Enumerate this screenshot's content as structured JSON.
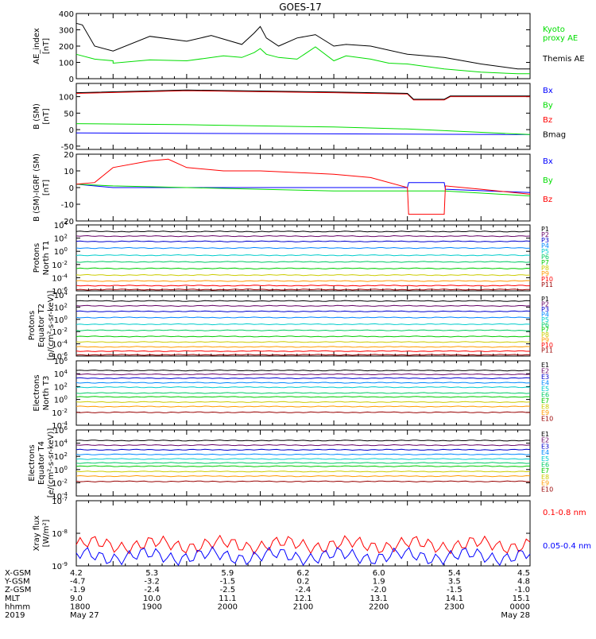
{
  "title": "GOES-17",
  "colors": {
    "black": "#000000",
    "red": "#ff0000",
    "green": "#00dd00",
    "blue": "#0000ff",
    "darkred": "#990000"
  },
  "chart_data": [
    {
      "type": "line",
      "panel": "AE index",
      "ylabel": [
        "AE_index",
        "[nT]"
      ],
      "ylim": [
        0,
        400
      ],
      "yticks": [
        "0",
        "100",
        "200",
        "300",
        "400"
      ],
      "series": [
        {
          "name": "Kyoto proxy AE",
          "legend_lines": [
            "Kyoto",
            "proxy AE"
          ],
          "color": "#00dd00",
          "x": [
            1730,
            1745,
            1760,
            1800,
            1830,
            1900,
            1930,
            1945,
            1955,
            2000,
            2005,
            2015,
            2030,
            2045,
            2100,
            2110,
            2130,
            2145,
            2200,
            2230,
            2300,
            2330,
            2340
          ],
          "y": [
            150,
            120,
            110,
            95,
            115,
            110,
            140,
            130,
            160,
            185,
            150,
            130,
            120,
            195,
            110,
            140,
            120,
            95,
            90,
            60,
            40,
            30,
            30
          ]
        },
        {
          "name": "Themis AE",
          "legend_lines": [
            "Themis AE"
          ],
          "color": "#000000",
          "x": [
            1730,
            1735,
            1745,
            1800,
            1830,
            1900,
            1920,
            1945,
            1955,
            2000,
            2005,
            2015,
            2030,
            2045,
            2100,
            2110,
            2130,
            2200,
            2230,
            2300,
            2330,
            2340
          ],
          "y": [
            340,
            330,
            200,
            170,
            260,
            230,
            265,
            210,
            280,
            320,
            250,
            200,
            250,
            270,
            200,
            210,
            200,
            150,
            130,
            90,
            60,
            60
          ]
        }
      ]
    },
    {
      "type": "line",
      "panel": "B (SM)",
      "ylabel": [
        "B (SM)",
        "[nT]"
      ],
      "ylim": [
        -60,
        140
      ],
      "yticks": [
        "-50",
        "0",
        "50",
        "100"
      ],
      "series": [
        {
          "name": "Bx",
          "color": "#0000ff",
          "x": [
            1730,
            2340
          ],
          "y": [
            -10,
            -15
          ]
        },
        {
          "name": "By",
          "color": "#00dd00",
          "x": [
            1730,
            1900,
            2100,
            2200,
            2340
          ],
          "y": [
            18,
            15,
            8,
            2,
            -15
          ]
        },
        {
          "name": "Bz",
          "color": "#ff0000",
          "x": [
            1730,
            1900,
            2100,
            2200,
            2205,
            2230,
            2235,
            2340
          ],
          "y": [
            110,
            118,
            112,
            108,
            90,
            90,
            100,
            100
          ]
        },
        {
          "name": "Bmag",
          "color": "#000000",
          "x": [
            1730,
            1900,
            2100,
            2200,
            2205,
            2230,
            2235,
            2340
          ],
          "y": [
            112,
            120,
            114,
            110,
            92,
            92,
            102,
            102
          ]
        }
      ]
    },
    {
      "type": "line",
      "panel": "B (SM)-IGRF (SM)",
      "ylabel": [
        "B (SM)-IGRF (SM)",
        "[nT]"
      ],
      "ylim": [
        -20,
        20
      ],
      "yticks": [
        "-20",
        "-10",
        "0",
        "10",
        "20"
      ],
      "series": [
        {
          "name": "Bx",
          "color": "#0000ff",
          "x": [
            1730,
            1800,
            1900,
            2100,
            2200,
            2201,
            2230,
            2231,
            2340
          ],
          "y": [
            2,
            0,
            0,
            0,
            0,
            3,
            3,
            -1,
            -3
          ]
        },
        {
          "name": "By",
          "color": "#00dd00",
          "x": [
            1730,
            1800,
            1900,
            2000,
            2100,
            2200,
            2230,
            2340
          ],
          "y": [
            2,
            1,
            0,
            -1,
            -2,
            -2,
            -2,
            -5
          ]
        },
        {
          "name": "Bz",
          "color": "#ff0000",
          "x": [
            1730,
            1745,
            1800,
            1830,
            1845,
            1900,
            1930,
            2000,
            2030,
            2100,
            2130,
            2200,
            2201,
            2230,
            2231,
            2300,
            2340
          ],
          "y": [
            2,
            3,
            12,
            16,
            17,
            12,
            10,
            10,
            9,
            8,
            6,
            0,
            -16,
            -16,
            1,
            -1,
            -4
          ]
        }
      ]
    },
    {
      "type": "line",
      "panel": "Protons North T1",
      "ylabel": [
        "Protons",
        "North T1"
      ],
      "log": true,
      "ylim_exp": [
        -6,
        4
      ],
      "yticks": [
        "10^4",
        "10^2",
        "10^0",
        "10^-2",
        "10^-4",
        "10^-6"
      ],
      "series": [
        {
          "name": "P1",
          "color": "#000000",
          "log10": 3.0
        },
        {
          "name": "P2",
          "color": "#660066",
          "log10": 2.3
        },
        {
          "name": "P3",
          "color": "#0000cc",
          "log10": 1.5
        },
        {
          "name": "P4",
          "color": "#0088ff",
          "log10": 0.5
        },
        {
          "name": "P5",
          "color": "#00cccc",
          "log10": -0.6
        },
        {
          "name": "P6",
          "color": "#00cc66",
          "log10": -1.6
        },
        {
          "name": "P7",
          "color": "#00cc00",
          "log10": -2.6
        },
        {
          "name": "P8",
          "color": "#cccc00",
          "log10": -3.6
        },
        {
          "name": "P9",
          "color": "#ff9900",
          "log10": -4.5
        },
        {
          "name": "P10",
          "color": "#ff0000",
          "log10": -5.2
        },
        {
          "name": "P11",
          "color": "#990000",
          "log10": -5.8
        }
      ]
    },
    {
      "type": "line",
      "panel": "Protons Equator T2",
      "ylabel": [
        "Protons",
        "Equator T2",
        "[p/(cm²-s-sr-keV)]"
      ],
      "log": true,
      "ylim_exp": [
        -6,
        4
      ],
      "yticks": [
        "10^4",
        "10^2",
        "10^0",
        "10^-2",
        "10^-4",
        "10^-6"
      ],
      "series": [
        {
          "name": "P1",
          "color": "#000000",
          "log10": 3.0
        },
        {
          "name": "P2",
          "color": "#660066",
          "log10": 2.2
        },
        {
          "name": "P3",
          "color": "#0000cc",
          "log10": 1.3
        },
        {
          "name": "P4",
          "color": "#0088ff",
          "log10": 0.3
        },
        {
          "name": "P5",
          "color": "#00cccc",
          "log10": -0.8
        },
        {
          "name": "P6",
          "color": "#00cc66",
          "log10": -1.8
        },
        {
          "name": "P7",
          "color": "#00cc00",
          "log10": -2.8
        },
        {
          "name": "P8",
          "color": "#cccc00",
          "log10": -3.7
        },
        {
          "name": "P9",
          "color": "#ff9900",
          "log10": -4.5
        },
        {
          "name": "P10",
          "color": "#ff0000",
          "log10": -5.2
        },
        {
          "name": "P11",
          "color": "#990000",
          "log10": -5.8
        }
      ]
    },
    {
      "type": "line",
      "panel": "Electrons North T3",
      "ylabel": [
        "Electrons",
        "North T3"
      ],
      "log": true,
      "ylim_exp": [
        -4,
        6
      ],
      "yticks": [
        "10^6",
        "10^4",
        "10^2",
        "10^0",
        "10^-2",
        "10^-4"
      ],
      "series": [
        {
          "name": "E1",
          "color": "#000000",
          "log10": 4.5
        },
        {
          "name": "E2",
          "color": "#660066",
          "log10": 3.9
        },
        {
          "name": "E3",
          "color": "#0000cc",
          "log10": 3.3
        },
        {
          "name": "E4",
          "color": "#0088ff",
          "log10": 2.6
        },
        {
          "name": "E5",
          "color": "#00cccc",
          "log10": 1.9
        },
        {
          "name": "E6",
          "color": "#00cc66",
          "log10": 1.0
        },
        {
          "name": "E7",
          "color": "#00cc00",
          "log10": 0.4
        },
        {
          "name": "E8",
          "color": "#cccc00",
          "log10": -0.4
        },
        {
          "name": "E9",
          "color": "#ff9900",
          "log10": -1.1
        },
        {
          "name": "E10",
          "color": "#990000",
          "log10": -2.0
        }
      ]
    },
    {
      "type": "line",
      "panel": "Electrons Equator T4",
      "ylabel": [
        "Electrons",
        "Equator T4",
        "[e/(cm²-s-sr-keV)]"
      ],
      "log": true,
      "ylim_exp": [
        -4,
        6
      ],
      "yticks": [
        "10^6",
        "10^4",
        "10^2",
        "10^0",
        "10^-2",
        "10^-4"
      ],
      "series": [
        {
          "name": "E1",
          "color": "#000000",
          "log10": 4.4
        },
        {
          "name": "E2",
          "color": "#660066",
          "log10": 3.7
        },
        {
          "name": "E3",
          "color": "#0000cc",
          "log10": 3.0
        },
        {
          "name": "E4",
          "color": "#0088ff",
          "log10": 2.3
        },
        {
          "name": "E5",
          "color": "#00cccc",
          "log10": 1.6
        },
        {
          "name": "E6",
          "color": "#00cc66",
          "log10": 1.0
        },
        {
          "name": "E7",
          "color": "#00cc00",
          "log10": 0.5
        },
        {
          "name": "E8",
          "color": "#cccc00",
          "log10": -0.3
        },
        {
          "name": "E9",
          "color": "#ff9900",
          "log10": -1.0
        },
        {
          "name": "E10",
          "color": "#990000",
          "log10": -1.8
        }
      ]
    },
    {
      "type": "line",
      "panel": "Xray flux",
      "ylabel": [
        "Xray flux",
        "[W/m²]"
      ],
      "log": true,
      "ylim_exp": [
        -9,
        -7
      ],
      "yticks": [
        "10^-7",
        "10^-8",
        "10^-9"
      ],
      "series": [
        {
          "name": "0.1-0.8 nm",
          "color": "#ff0000",
          "log10": -8.35
        },
        {
          "name": "0.05-0.4 nm",
          "color": "#0000ff",
          "log10": -8.7
        }
      ]
    }
  ],
  "xaxis": {
    "row_labels": [
      "X-GSM",
      "Y-GSM",
      "Z-GSM",
      "MLT",
      "hhmm",
      "2019"
    ],
    "columns": [
      {
        "x": 1730,
        "vals": [
          "4.2",
          "-4.7",
          "-1.9",
          "9.0",
          "1800",
          "May 27"
        ]
      },
      {
        "x": 1800,
        "vals": [
          "5.3",
          "-3.2",
          "-2.4",
          "10.0",
          "1900",
          ""
        ]
      },
      {
        "x": 1900,
        "vals": [
          "5.9",
          "-1.5",
          "-2.5",
          "11.1",
          "2000",
          ""
        ]
      },
      {
        "x": 2000,
        "vals": [
          "6.2",
          "0.2",
          "-2.4",
          "12.1",
          "2100",
          ""
        ]
      },
      {
        "x": 2100,
        "vals": [
          "6.0",
          "1.9",
          "-2.0",
          "13.1",
          "2200",
          ""
        ]
      },
      {
        "x": 2200,
        "vals": [
          "5.4",
          "3.5",
          "-1.5",
          "14.1",
          "2300",
          ""
        ]
      },
      {
        "x": 2300,
        "vals": [
          "4.5",
          "4.8",
          "-1.0",
          "15.1",
          "0000",
          "May 28"
        ]
      }
    ]
  }
}
